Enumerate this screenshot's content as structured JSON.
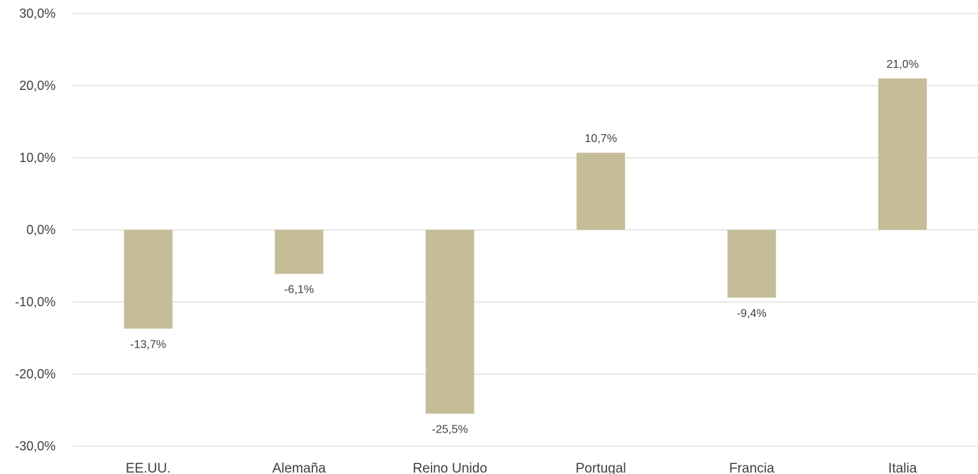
{
  "chart_data": {
    "type": "bar",
    "title": "",
    "xlabel": "",
    "ylabel": "",
    "categories": [
      "EE.UU.",
      "Alemaña",
      "Reino Unido",
      "Portugal",
      "Francia",
      "Italia"
    ],
    "values": [
      -13.7,
      -6.1,
      -25.5,
      10.7,
      -9.4,
      21.0
    ],
    "data_labels": [
      "-13,7%",
      "-6,1%",
      "-25,5%",
      "10,7%",
      "-9,4%",
      "21,0%"
    ],
    "ylim": [
      -30,
      30
    ],
    "yticks": [
      30,
      20,
      10,
      0,
      -10,
      -20,
      -30
    ],
    "ytick_labels": [
      "30,0%",
      "20,0%",
      "10,0%",
      "0,0%",
      "-10,0%",
      "-20,0%",
      "-30,0%"
    ],
    "grid": true,
    "legend": "none",
    "colors": {
      "bar": "#c5bd97",
      "grid": "#d9d9d9",
      "text": "#404040"
    }
  }
}
